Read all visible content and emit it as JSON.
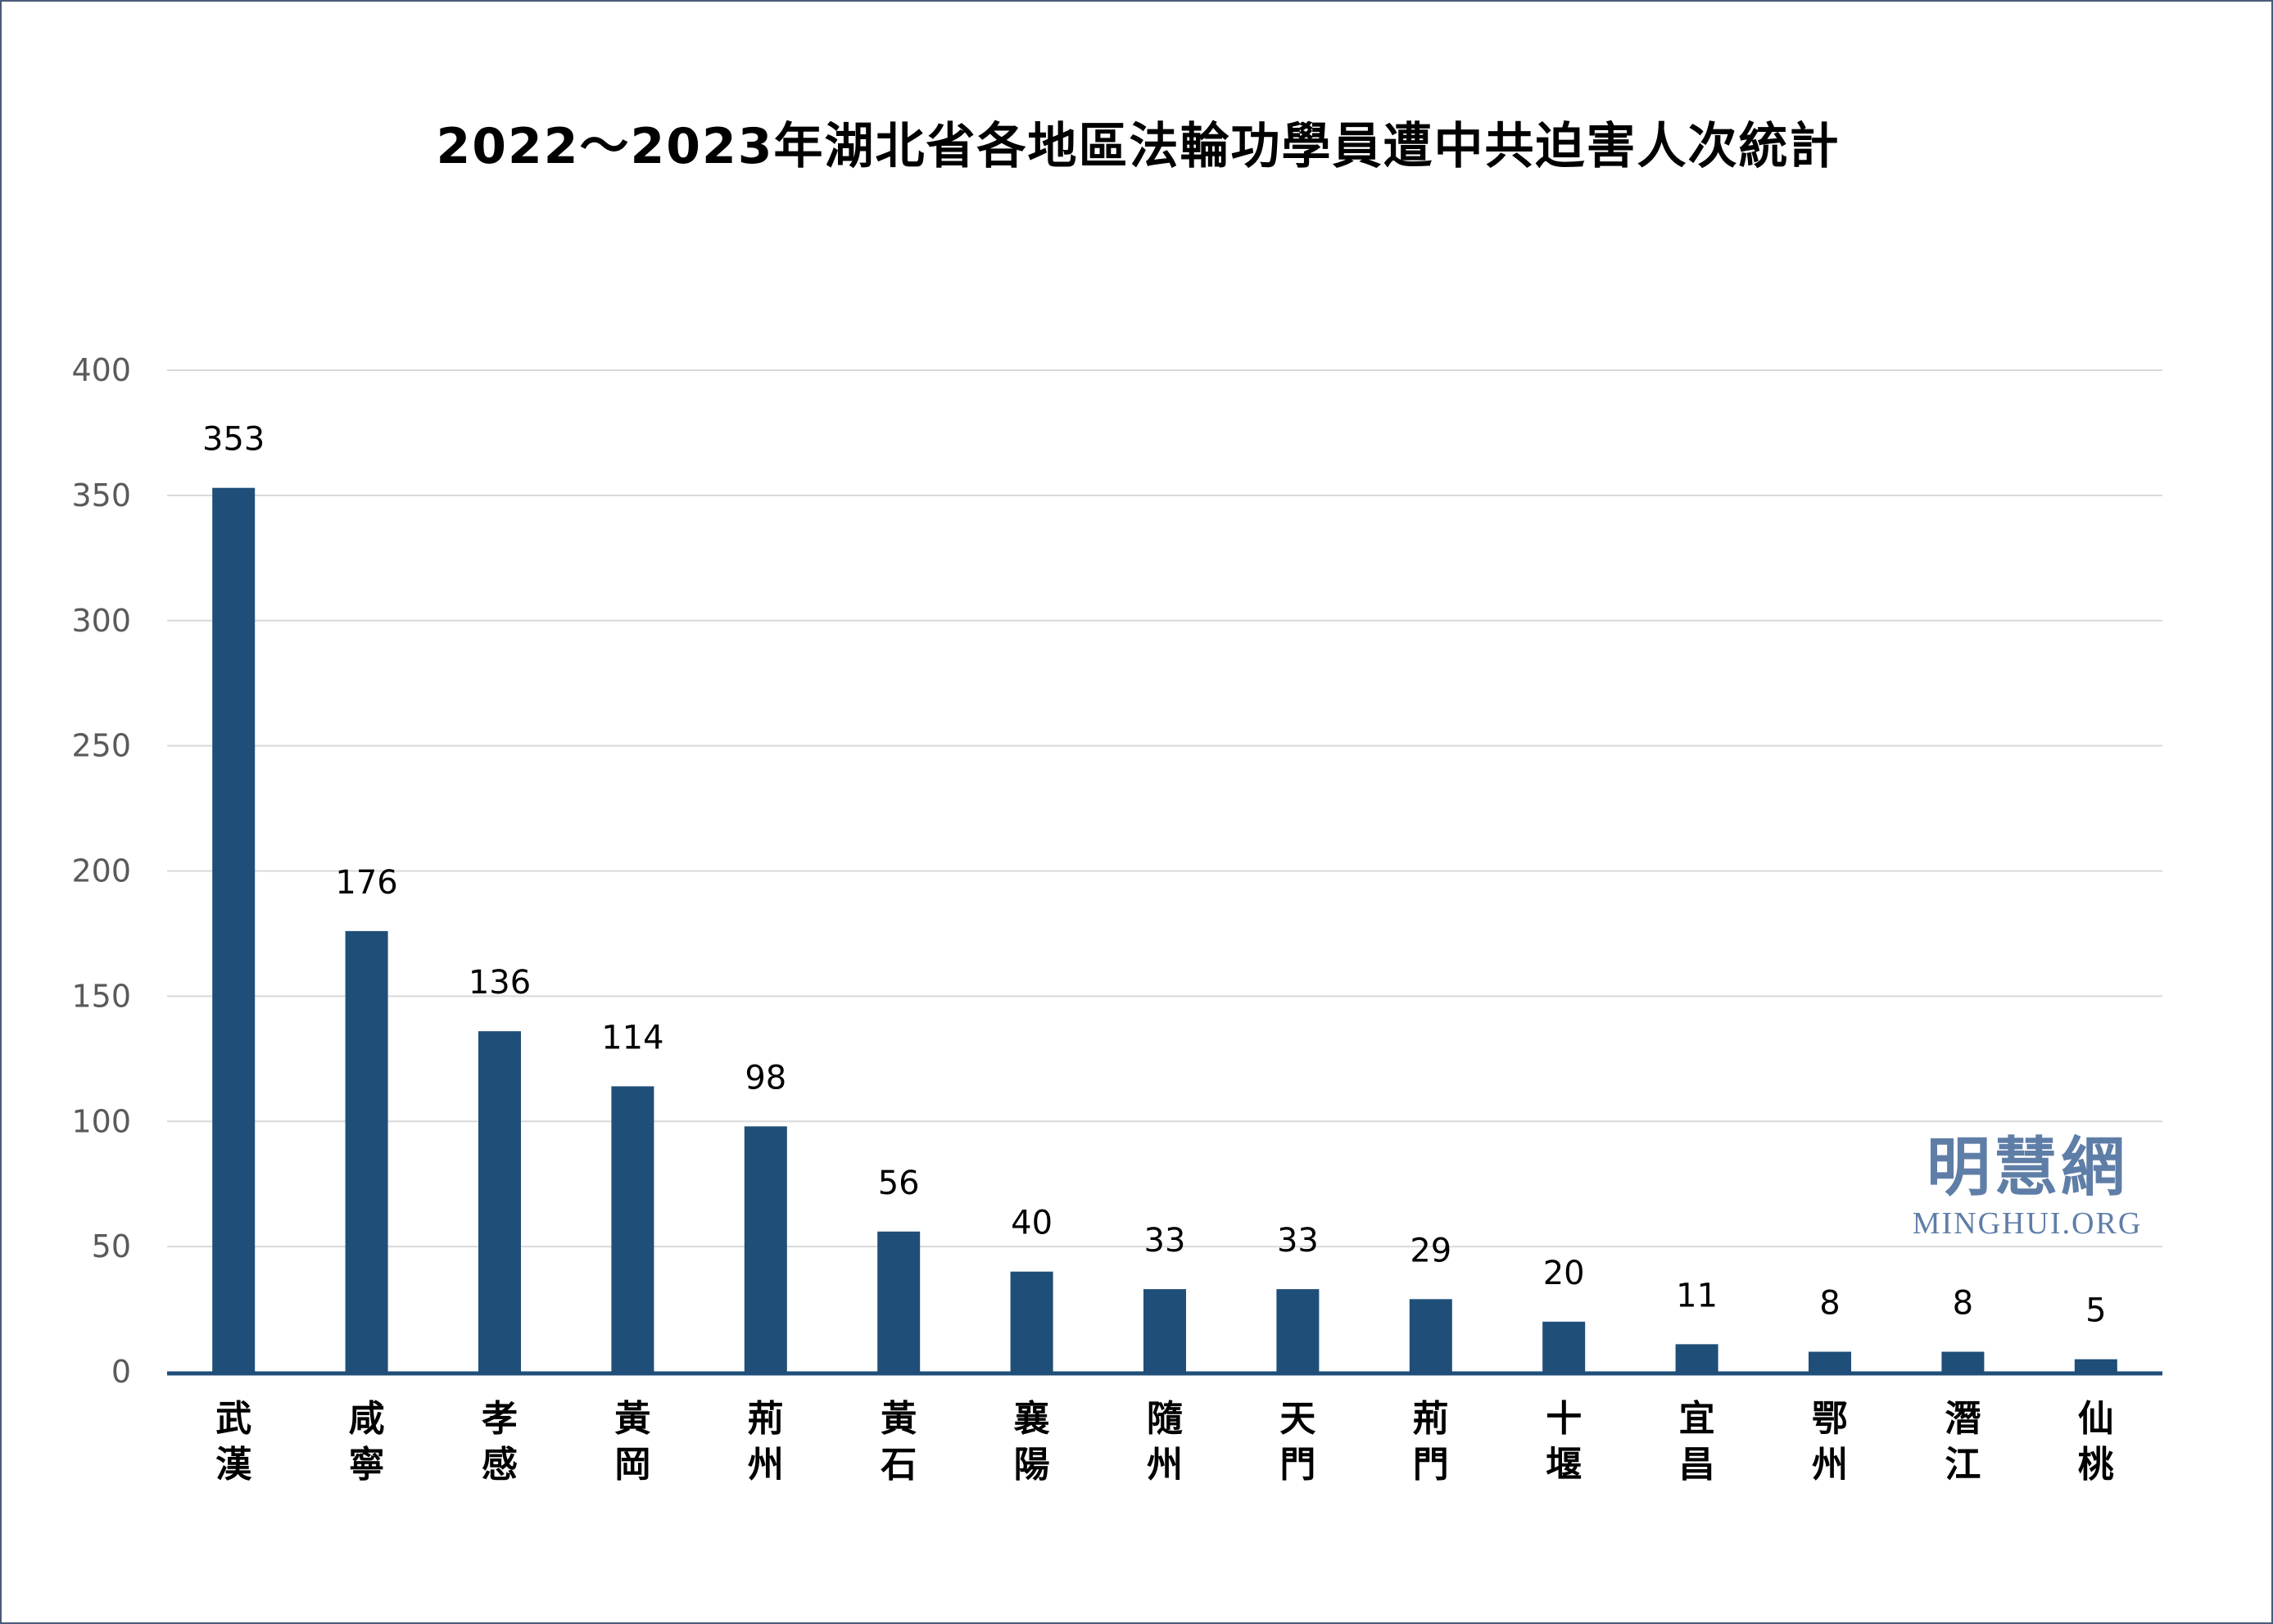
{
  "chart_data": {
    "type": "bar",
    "title": "2022～2023年湖北省各地區法輪功學員遭中共迫害人次統計",
    "xlabel": "",
    "ylabel": "",
    "categories": [
      "武漢",
      "咸寧",
      "孝感",
      "黃岡",
      "荊州",
      "黃石",
      "襄陽",
      "隨州",
      "天門",
      "荊門",
      "十堰",
      "宜昌",
      "鄂州",
      "潛江",
      "仙桃"
    ],
    "values": [
      353,
      176,
      136,
      114,
      98,
      56,
      40,
      33,
      33,
      29,
      20,
      11,
      8,
      8,
      5
    ],
    "ylim": [
      0,
      400
    ],
    "yticks": [
      0,
      50,
      100,
      150,
      200,
      250,
      300,
      350,
      400
    ],
    "grid": true,
    "legend": "none",
    "data_labels": true,
    "colors": {
      "bar": "#1f4e79",
      "grid": "#d9d9d9",
      "axis": "#1f4e79",
      "tick_text": "#5a5a5a",
      "border": "#4a5a78"
    }
  },
  "watermark": {
    "chinese": "明慧網",
    "english": "MINGHUI.ORG",
    "color": "#5f7ea7"
  }
}
